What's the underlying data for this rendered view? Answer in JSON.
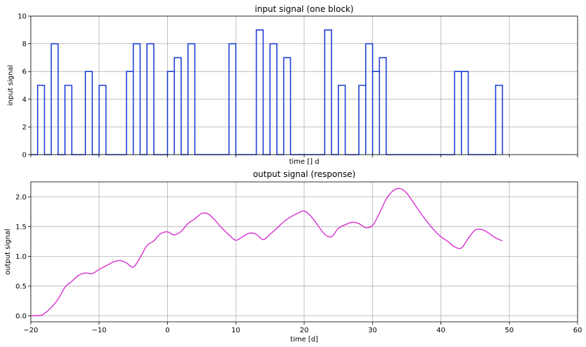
{
  "chart_data": [
    {
      "type": "line",
      "title": "input signal (one block)",
      "xlabel": "time [] d",
      "ylabel": "input signal",
      "xlim": [
        -20,
        60
      ],
      "ylim": [
        0,
        10
      ],
      "xticks": [
        -20,
        -10,
        0,
        10,
        20,
        30,
        40,
        50,
        60
      ],
      "xtick_labels_shown": false,
      "yticks": [
        0,
        2,
        4,
        6,
        8,
        10
      ],
      "ytick_labels": [
        "0",
        "2",
        "4",
        "6",
        "8",
        "10"
      ],
      "grid": true,
      "drawstyle": "steps",
      "color": "#1f3fd6",
      "pulses": [
        {
          "start": -19.0,
          "end": -18.0,
          "value": 5
        },
        {
          "start": -17.0,
          "end": -16.0,
          "value": 8
        },
        {
          "start": -15.0,
          "end": -14.0,
          "value": 5
        },
        {
          "start": -12.0,
          "end": -11.0,
          "value": 6
        },
        {
          "start": -10.0,
          "end": -9.0,
          "value": 5
        },
        {
          "start": -6.0,
          "end": -5.0,
          "value": 6
        },
        {
          "start": -5.0,
          "end": -4.0,
          "value": 8
        },
        {
          "start": -3.0,
          "end": -2.0,
          "value": 8
        },
        {
          "start": 0.0,
          "end": 1.0,
          "value": 6
        },
        {
          "start": 1.0,
          "end": 2.0,
          "value": 7
        },
        {
          "start": 3.0,
          "end": 4.0,
          "value": 8
        },
        {
          "start": 9.0,
          "end": 10.0,
          "value": 8
        },
        {
          "start": 13.0,
          "end": 14.0,
          "value": 9
        },
        {
          "start": 15.0,
          "end": 16.0,
          "value": 8
        },
        {
          "start": 17.0,
          "end": 18.0,
          "value": 7
        },
        {
          "start": 23.0,
          "end": 24.0,
          "value": 9
        },
        {
          "start": 25.0,
          "end": 26.0,
          "value": 5
        },
        {
          "start": 28.0,
          "end": 29.0,
          "value": 5
        },
        {
          "start": 29.0,
          "end": 30.0,
          "value": 8
        },
        {
          "start": 30.0,
          "end": 31.0,
          "value": 6
        },
        {
          "start": 31.0,
          "end": 32.0,
          "value": 7
        },
        {
          "start": 42.0,
          "end": 43.0,
          "value": 6
        },
        {
          "start": 43.0,
          "end": 44.0,
          "value": 6
        },
        {
          "start": 48.0,
          "end": 49.0,
          "value": 5
        }
      ],
      "signal_range": [
        -20,
        49
      ]
    },
    {
      "type": "line",
      "title": "output signal (response)",
      "xlabel": "time [d]",
      "ylabel": "output signal",
      "xlim": [
        -20,
        60
      ],
      "ylim": [
        -0.1,
        2.25
      ],
      "xticks": [
        -20,
        -10,
        0,
        10,
        20,
        30,
        40,
        50,
        60
      ],
      "xtick_labels": [
        "−20",
        "−10",
        "0",
        "10",
        "20",
        "30",
        "40",
        "50",
        "60"
      ],
      "yticks": [
        0.0,
        0.5,
        1.0,
        1.5,
        2.0
      ],
      "ytick_labels": [
        "0.0",
        "0.5",
        "1.0",
        "1.5",
        "2.0"
      ],
      "grid": true,
      "color": "#d62fd0",
      "x": [
        -20,
        -18.5,
        -18,
        -17,
        -16,
        -15,
        -14,
        -13,
        -12,
        -11,
        -10,
        -9,
        -8,
        -7,
        -6,
        -5,
        -4,
        -3,
        -2,
        -1,
        0,
        1,
        2,
        3,
        4,
        5,
        6,
        7,
        8,
        9,
        10,
        11,
        12,
        13,
        14,
        15,
        16,
        17,
        18,
        19,
        20,
        21,
        22,
        23,
        24,
        25,
        26,
        27,
        28,
        29,
        30,
        31,
        32,
        33,
        34,
        35,
        36,
        37,
        38,
        39,
        40,
        41,
        42,
        43,
        44,
        45,
        46,
        47,
        48,
        49
      ],
      "y": [
        0.0,
        0.01,
        0.04,
        0.14,
        0.28,
        0.48,
        0.58,
        0.68,
        0.72,
        0.71,
        0.78,
        0.84,
        0.9,
        0.93,
        0.89,
        0.82,
        0.98,
        1.18,
        1.26,
        1.38,
        1.41,
        1.36,
        1.42,
        1.55,
        1.63,
        1.72,
        1.71,
        1.6,
        1.47,
        1.36,
        1.27,
        1.33,
        1.39,
        1.37,
        1.28,
        1.37,
        1.47,
        1.58,
        1.66,
        1.72,
        1.76,
        1.67,
        1.52,
        1.37,
        1.33,
        1.47,
        1.53,
        1.57,
        1.55,
        1.48,
        1.52,
        1.72,
        1.96,
        2.1,
        2.14,
        2.06,
        1.9,
        1.73,
        1.58,
        1.44,
        1.33,
        1.25,
        1.16,
        1.14,
        1.3,
        1.44,
        1.45,
        1.39,
        1.31,
        1.26
      ]
    }
  ]
}
